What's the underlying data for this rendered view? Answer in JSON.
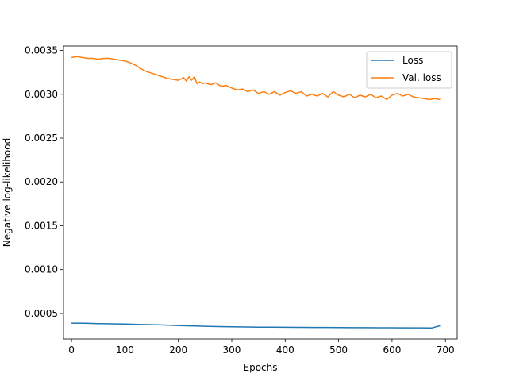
{
  "chart_data": {
    "type": "line",
    "title": "",
    "xlabel": "Epochs",
    "ylabel": "Negative log-likelihood",
    "xlim": [
      -15,
      722
    ],
    "ylim": [
      0.00021,
      0.00355
    ],
    "xticks": [
      0,
      100,
      200,
      300,
      400,
      500,
      600,
      700
    ],
    "xtick_labels": [
      "0",
      "100",
      "200",
      "300",
      "400",
      "500",
      "600",
      "700"
    ],
    "yticks": [
      0.0005,
      0.001,
      0.0015,
      0.002,
      0.0025,
      0.003,
      0.0035
    ],
    "ytick_labels": [
      "0.0005",
      "0.0010",
      "0.0015",
      "0.0020",
      "0.0025",
      "0.0030",
      "0.0035"
    ],
    "grid": false,
    "legend_position": "top-right",
    "series": [
      {
        "name": "Loss",
        "color": "#1f77b4",
        "x": [
          0,
          25,
          50,
          75,
          100,
          125,
          150,
          175,
          200,
          225,
          250,
          275,
          300,
          325,
          350,
          375,
          400,
          425,
          450,
          475,
          500,
          525,
          550,
          575,
          600,
          625,
          650,
          675,
          690
        ],
        "y": [
          0.00039,
          0.000388,
          0.000385,
          0.000382,
          0.00038,
          0.000376,
          0.000372,
          0.000368,
          0.000362,
          0.000358,
          0.000354,
          0.00035,
          0.000348,
          0.000346,
          0.000344,
          0.000343,
          0.000342,
          0.000341,
          0.00034,
          0.00034,
          0.000339,
          0.000338,
          0.000338,
          0.000337,
          0.000337,
          0.000336,
          0.000336,
          0.000335,
          0.00036
        ]
      },
      {
        "name": "Val. loss",
        "color": "#ff7f0e",
        "x": [
          0,
          10,
          20,
          30,
          40,
          50,
          60,
          70,
          80,
          90,
          100,
          110,
          120,
          130,
          140,
          150,
          160,
          170,
          180,
          190,
          200,
          210,
          215,
          220,
          225,
          230,
          235,
          240,
          245,
          250,
          260,
          270,
          280,
          290,
          300,
          310,
          320,
          330,
          340,
          350,
          360,
          370,
          380,
          390,
          400,
          410,
          420,
          430,
          440,
          450,
          460,
          470,
          480,
          490,
          500,
          510,
          520,
          530,
          540,
          550,
          560,
          570,
          580,
          590,
          600,
          610,
          620,
          630,
          640,
          650,
          660,
          670,
          680,
          690
        ],
        "y": [
          0.00342,
          0.00343,
          0.00342,
          0.00341,
          0.00341,
          0.0034,
          0.00341,
          0.00341,
          0.0034,
          0.00339,
          0.00338,
          0.00336,
          0.00333,
          0.00329,
          0.00326,
          0.00324,
          0.00322,
          0.0032,
          0.00318,
          0.00317,
          0.00316,
          0.00319,
          0.00315,
          0.0032,
          0.00316,
          0.0032,
          0.00312,
          0.00314,
          0.00312,
          0.00313,
          0.00311,
          0.00313,
          0.00309,
          0.0031,
          0.00307,
          0.00305,
          0.00306,
          0.00303,
          0.00305,
          0.00301,
          0.00303,
          0.003,
          0.00303,
          0.00299,
          0.00302,
          0.00304,
          0.00301,
          0.00303,
          0.00298,
          0.003,
          0.00298,
          0.00301,
          0.00297,
          0.00303,
          0.00299,
          0.00297,
          0.003,
          0.00296,
          0.00299,
          0.00297,
          0.003,
          0.00296,
          0.00298,
          0.00294,
          0.00299,
          0.00301,
          0.00298,
          0.003,
          0.00297,
          0.00296,
          0.00295,
          0.00294,
          0.00295,
          0.00294
        ]
      }
    ]
  },
  "colors": {
    "axis": "#000000",
    "background": "#ffffff"
  }
}
